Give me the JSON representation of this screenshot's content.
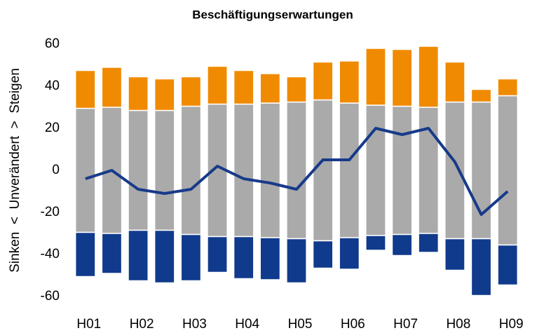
{
  "chart_data": {
    "type": "bar",
    "title": "Beschäftigungserwartungen",
    "y_label": "Sinken  <  Unverändert  >  Steigen",
    "categories": [
      "H01",
      null,
      "H02",
      null,
      "H03",
      null,
      "H04",
      null,
      "H05",
      null,
      "H06",
      null,
      "H07",
      null,
      "H08",
      null,
      "H09"
    ],
    "series": [
      {
        "color": "#aaaaaa",
        "position": "middle",
        "values": [
          59,
          60,
          57,
          57,
          61,
          63,
          63,
          64,
          65,
          67,
          64,
          62,
          61,
          60,
          65,
          65,
          71
        ]
      },
      {
        "color": "#f08a00",
        "position": "above",
        "values": [
          18,
          19,
          16,
          15,
          14,
          18,
          16,
          14,
          12,
          18,
          20,
          27,
          27,
          29,
          19,
          6,
          8
        ]
      },
      {
        "color": "#103a8c",
        "position": "below",
        "values": [
          21,
          19,
          24,
          25,
          22,
          17,
          20,
          20,
          21,
          13,
          15,
          7,
          10,
          9,
          15,
          27,
          19
        ]
      },
      {
        "color": "#173a8a",
        "type": "line",
        "values": [
          -4,
          0,
          -9,
          -11,
          -9,
          2,
          -4,
          -6,
          -9,
          5,
          5,
          20,
          17,
          20,
          4,
          -21,
          -10
        ]
      }
    ],
    "ylim": [
      -65,
      65
    ],
    "yticks": [
      -60,
      -40,
      -20,
      0,
      20,
      40,
      60
    ],
    "grid": false
  }
}
